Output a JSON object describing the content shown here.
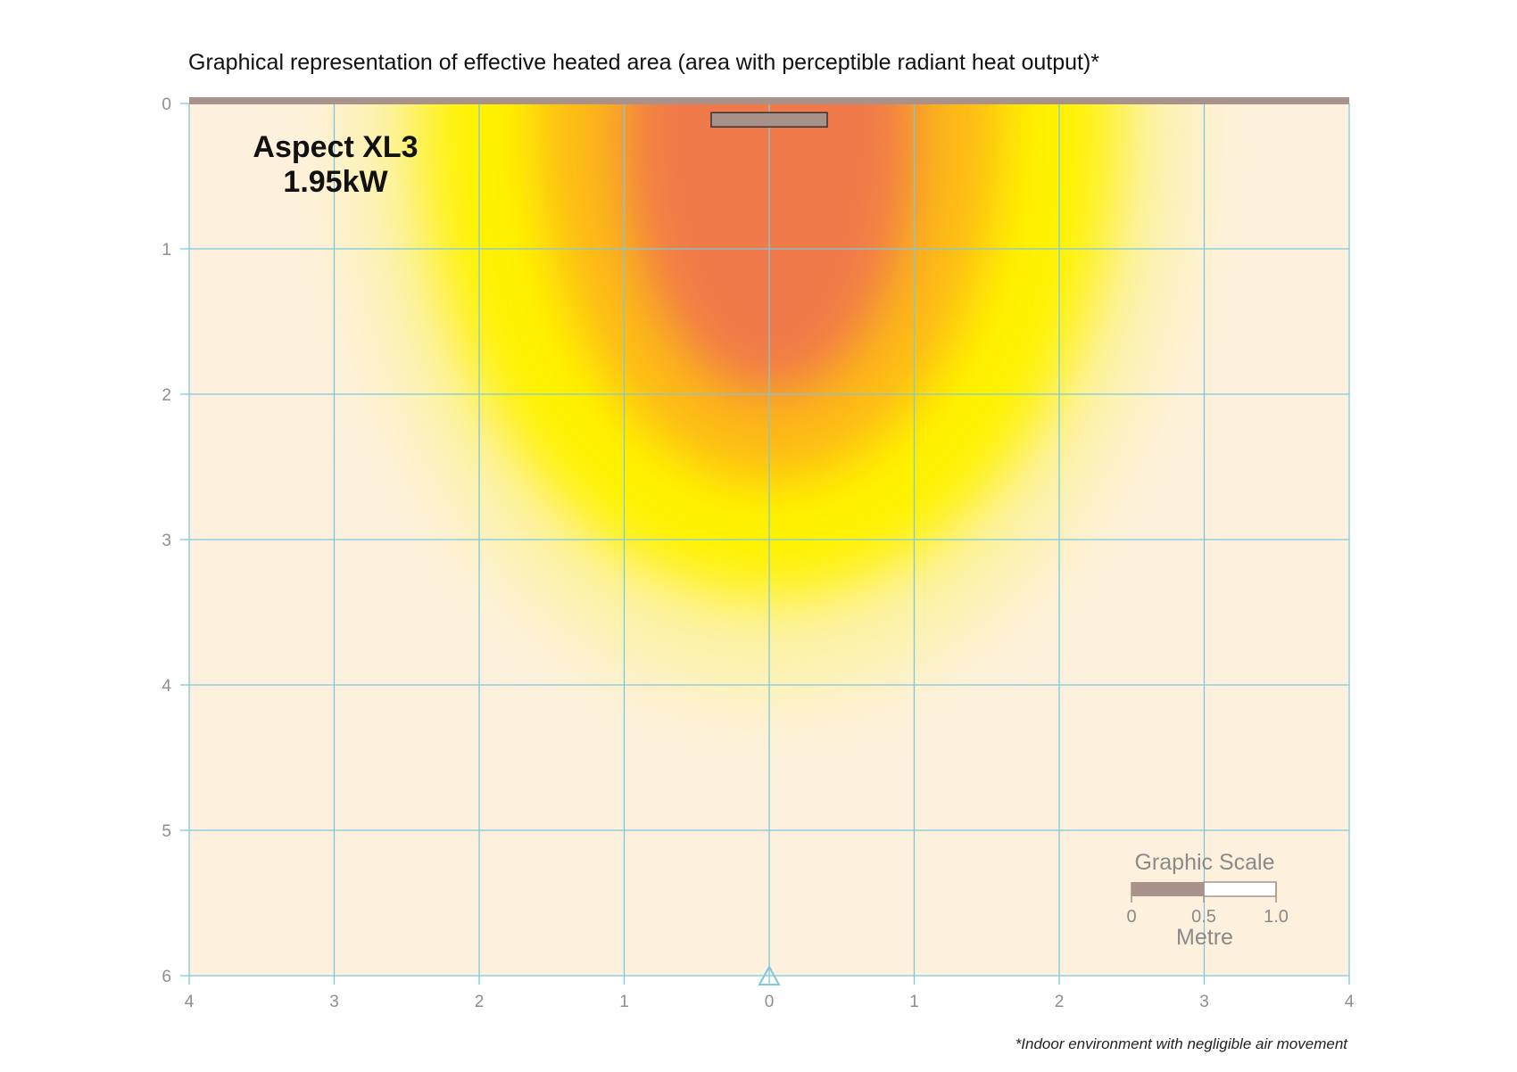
{
  "chart_data": {
    "type": "heatmap",
    "title": "Graphical representation of effective heated area (area with perceptible radiant heat output)*",
    "annotation": {
      "product": "Aspect XL3",
      "power": "1.95kW"
    },
    "x_ticks": [
      "4",
      "3",
      "2",
      "1",
      "0",
      "1",
      "2",
      "3",
      "4"
    ],
    "y_ticks": [
      "0",
      "1",
      "2",
      "3",
      "4",
      "5",
      "6"
    ],
    "xlim": [
      -4,
      4
    ],
    "ylim": [
      0,
      6
    ],
    "grid": true,
    "heater": {
      "x_start": -0.4,
      "x_end": 0.4,
      "y": 0.1
    },
    "observer_marker": {
      "x": 0,
      "y": 6
    },
    "heat_zones": [
      {
        "level": "perceptible",
        "x_extent": [
          -2.9,
          2.9
        ],
        "y_extent": [
          0.1,
          4.1
        ],
        "color": "#fdf2a8"
      },
      {
        "level": "warm",
        "x_extent": [
          -2.4,
          2.4
        ],
        "y_extent": [
          0.1,
          3.4
        ],
        "color": "#fff200"
      },
      {
        "level": "hot",
        "x_extent": [
          -1.6,
          1.6
        ],
        "y_extent": [
          0.1,
          2.6
        ],
        "color": "#fdb913"
      },
      {
        "level": "hottest",
        "x_extent": [
          -1.0,
          1.0
        ],
        "y_extent": [
          0.2,
          2.0
        ],
        "color": "#f07a48"
      }
    ],
    "graphic_scale": {
      "title": "Graphic Scale",
      "labels": [
        "0",
        "0.5",
        "1.0"
      ],
      "unit": "Metre"
    },
    "footnote": "*Indoor environment with negligible air movement",
    "colors": {
      "background": "#fdf1dd",
      "grid": "#7ec8dc",
      "wall": "#a9928b",
      "heater": "#a9928b"
    }
  }
}
